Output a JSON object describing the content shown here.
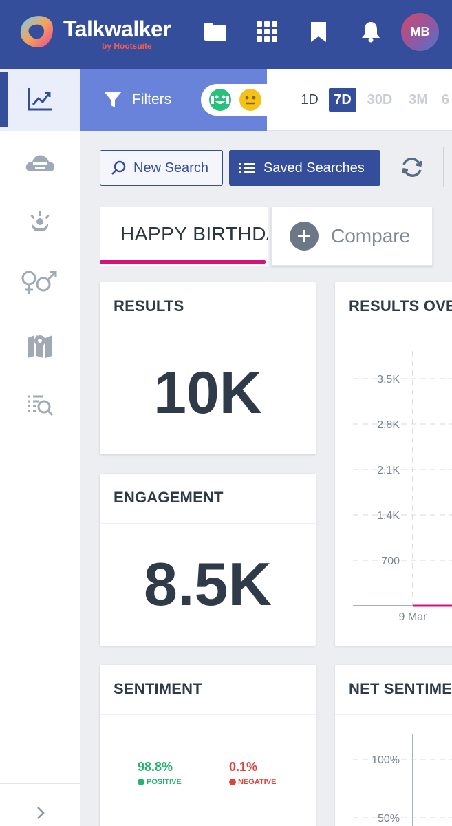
{
  "header": {
    "app_name": "Talkwalker",
    "app_sub": "by Hootsuite",
    "icons": [
      "folder-icon",
      "apps-grid-icon",
      "bookmark-icon",
      "bell-icon"
    ],
    "avatar_initials": "MB",
    "colors": {
      "bar": "#344e9c",
      "sub": "#f25c54"
    }
  },
  "sidebar": {
    "items": [
      "trend-chart-icon",
      "topic-cloud-icon",
      "influencer-icon",
      "gender-icon",
      "map-icon",
      "search-list-icon"
    ],
    "active_index": 0,
    "expand_icon": "chevron-right-icon"
  },
  "filters": {
    "label": "Filters",
    "sentiment_icons": [
      "positive-face-icon",
      "neutral-face-icon"
    ],
    "time_ranges": [
      "1D",
      "7D",
      "30D",
      "3M",
      "6"
    ],
    "selected_range": "7D"
  },
  "search": {
    "new_label": "New Search",
    "saved_label": "Saved Searches"
  },
  "tabs": {
    "query_label": "HAPPY BIRTHDAY",
    "compare_label": "Compare"
  },
  "cards": {
    "results": {
      "title": "RESULTS",
      "value": "10K"
    },
    "engagement": {
      "title": "ENGAGEMENT",
      "value": "8.5K"
    },
    "sentiment": {
      "title": "SENTIMENT",
      "positive_value": "98.8%",
      "positive_label": "POSITIVE",
      "negative_value": "0.1%",
      "negative_label": "NEGATIVE",
      "colors": {
        "positive": "#27b36d",
        "negative": "#e0433a"
      }
    },
    "results_over_time": {
      "title": "RESULTS OVER TIME"
    },
    "net_sentiment": {
      "title": "NET SENTIMENT"
    }
  },
  "chart_data": [
    {
      "type": "line",
      "title": "RESULTS OVER TIME",
      "y_ticks": [
        "700",
        "1.4K",
        "2.1K",
        "2.8K",
        "3.5K"
      ],
      "ylim": [
        0,
        3500
      ],
      "x_ticks": [
        "9 Mar"
      ],
      "grid": true,
      "series": [
        {
          "x": [
            "9 Mar"
          ],
          "values": [
            0
          ],
          "color": "#d6127a"
        }
      ]
    },
    {
      "type": "line",
      "title": "NET SENTIMENT",
      "y_ticks": [
        "100%",
        "50%"
      ],
      "grid": true
    }
  ]
}
